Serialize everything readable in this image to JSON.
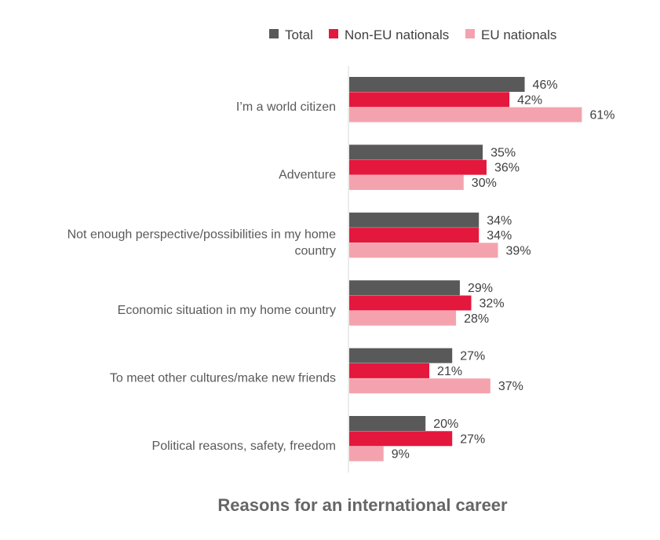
{
  "chart_data": {
    "type": "bar",
    "orientation": "horizontal",
    "title": "Reasons for an international career",
    "categories": [
      [
        "I’m a world citizen"
      ],
      [
        "Adventure"
      ],
      [
        "Not enough perspective/possibilities in my home",
        "country"
      ],
      [
        "Economic situation in my home country"
      ],
      [
        "To meet other cultures/make new friends"
      ],
      [
        "Political reasons, safety, freedom"
      ]
    ],
    "series": [
      {
        "name": "Total",
        "color": "#595959",
        "values": [
          46,
          35,
          34,
          29,
          27,
          20
        ],
        "labels": [
          "46%",
          "35%",
          "34%",
          "29%",
          "27%",
          "20%"
        ]
      },
      {
        "name": "Non-EU nationals",
        "color": "#e4173d",
        "values": [
          42,
          36,
          34,
          32,
          21,
          27
        ],
        "labels": [
          "42%",
          "36%",
          "34%",
          "32%",
          "21%",
          "27%"
        ]
      },
      {
        "name": "EU nationals",
        "color": "#f4a3ae",
        "values": [
          61,
          30,
          39,
          28,
          37,
          9
        ],
        "labels": [
          "61%",
          "30%",
          "39%",
          "28%",
          "37%",
          "9%"
        ]
      }
    ],
    "xlim": [
      0,
      100
    ],
    "grid": false,
    "legend_position": "top"
  }
}
